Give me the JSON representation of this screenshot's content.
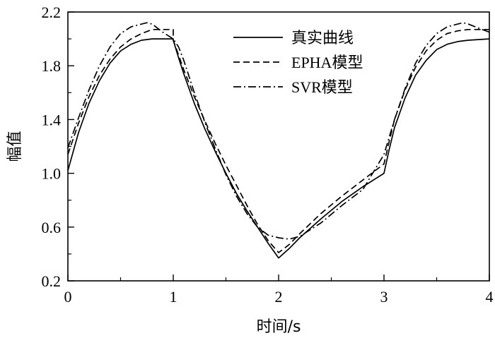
{
  "chart_data": {
    "type": "line",
    "xlabel": "时间/s",
    "ylabel": "幅值",
    "xlim": [
      0,
      4
    ],
    "ylim": [
      0.2,
      2.2
    ],
    "xticks": [
      "0",
      "1",
      "2",
      "3",
      "4"
    ],
    "yticks": [
      "0.2",
      "0.6",
      "1.0",
      "1.4",
      "1.8",
      "2.2"
    ],
    "grid": false,
    "legend_position": "top-right",
    "series": [
      {
        "name": "真实曲线",
        "style": "solid",
        "color": "#000000",
        "points": [
          [
            0,
            1.02
          ],
          [
            0.1,
            1.3
          ],
          [
            0.2,
            1.52
          ],
          [
            0.3,
            1.69
          ],
          [
            0.4,
            1.82
          ],
          [
            0.5,
            1.91
          ],
          [
            0.6,
            1.96
          ],
          [
            0.7,
            1.99
          ],
          [
            0.8,
            2.0
          ],
          [
            1.0,
            2.0
          ],
          [
            1.0,
            1.99
          ],
          [
            1.05,
            1.86
          ],
          [
            1.1,
            1.74
          ],
          [
            1.2,
            1.52
          ],
          [
            1.3,
            1.33
          ],
          [
            1.4,
            1.16
          ],
          [
            1.5,
            1.0
          ],
          [
            1.6,
            0.85
          ],
          [
            1.7,
            0.72
          ],
          [
            1.8,
            0.6
          ],
          [
            1.9,
            0.48
          ],
          [
            2.0,
            0.37
          ],
          [
            2.1,
            0.44
          ],
          [
            2.2,
            0.52
          ],
          [
            2.4,
            0.66
          ],
          [
            2.6,
            0.79
          ],
          [
            2.8,
            0.9
          ],
          [
            3.0,
            1.0
          ],
          [
            3.05,
            1.18
          ],
          [
            3.1,
            1.34
          ],
          [
            3.2,
            1.56
          ],
          [
            3.3,
            1.73
          ],
          [
            3.4,
            1.84
          ],
          [
            3.5,
            1.92
          ],
          [
            3.6,
            1.96
          ],
          [
            3.7,
            1.98
          ],
          [
            3.8,
            1.99
          ],
          [
            4.0,
            2.0
          ]
        ]
      },
      {
        "name": "EPHA模型",
        "style": "dashed",
        "color": "#000000",
        "points": [
          [
            0,
            1.14
          ],
          [
            0.1,
            1.37
          ],
          [
            0.2,
            1.57
          ],
          [
            0.3,
            1.73
          ],
          [
            0.4,
            1.85
          ],
          [
            0.5,
            1.94
          ],
          [
            0.6,
            2.0
          ],
          [
            0.7,
            2.04
          ],
          [
            0.8,
            2.07
          ],
          [
            1.0,
            2.07
          ],
          [
            1.0,
            1.99
          ],
          [
            1.05,
            1.88
          ],
          [
            1.1,
            1.77
          ],
          [
            1.2,
            1.57
          ],
          [
            1.3,
            1.39
          ],
          [
            1.4,
            1.22
          ],
          [
            1.5,
            1.06
          ],
          [
            1.6,
            0.91
          ],
          [
            1.7,
            0.76
          ],
          [
            1.8,
            0.62
          ],
          [
            1.9,
            0.5
          ],
          [
            2.0,
            0.41
          ],
          [
            2.1,
            0.47
          ],
          [
            2.2,
            0.55
          ],
          [
            2.4,
            0.7
          ],
          [
            2.6,
            0.83
          ],
          [
            2.8,
            0.95
          ],
          [
            3.0,
            1.07
          ],
          [
            3.05,
            1.24
          ],
          [
            3.1,
            1.4
          ],
          [
            3.2,
            1.62
          ],
          [
            3.3,
            1.79
          ],
          [
            3.4,
            1.91
          ],
          [
            3.5,
            1.99
          ],
          [
            3.6,
            2.04
          ],
          [
            3.7,
            2.06
          ],
          [
            3.8,
            2.07
          ],
          [
            4.0,
            2.07
          ]
        ]
      },
      {
        "name": "SVR模型",
        "style": "dashdot",
        "color": "#000000",
        "points": [
          [
            0,
            1.19
          ],
          [
            0.1,
            1.41
          ],
          [
            0.2,
            1.62
          ],
          [
            0.3,
            1.8
          ],
          [
            0.4,
            1.94
          ],
          [
            0.5,
            2.04
          ],
          [
            0.6,
            2.09
          ],
          [
            0.7,
            2.11
          ],
          [
            0.75,
            2.12
          ],
          [
            0.8,
            2.11
          ],
          [
            0.9,
            2.05
          ],
          [
            1.0,
            2.0
          ],
          [
            1.05,
            1.94
          ],
          [
            1.1,
            1.84
          ],
          [
            1.2,
            1.6
          ],
          [
            1.3,
            1.38
          ],
          [
            1.4,
            1.18
          ],
          [
            1.5,
            0.99
          ],
          [
            1.6,
            0.83
          ],
          [
            1.7,
            0.7
          ],
          [
            1.8,
            0.6
          ],
          [
            1.9,
            0.54
          ],
          [
            2.0,
            0.52
          ],
          [
            2.1,
            0.51
          ],
          [
            2.2,
            0.53
          ],
          [
            2.4,
            0.63
          ],
          [
            2.6,
            0.76
          ],
          [
            2.8,
            0.88
          ],
          [
            3.0,
            1.14
          ],
          [
            3.1,
            1.4
          ],
          [
            3.2,
            1.63
          ],
          [
            3.3,
            1.82
          ],
          [
            3.4,
            1.95
          ],
          [
            3.5,
            2.04
          ],
          [
            3.6,
            2.09
          ],
          [
            3.7,
            2.11
          ],
          [
            3.75,
            2.12
          ],
          [
            3.8,
            2.11
          ],
          [
            3.9,
            2.08
          ],
          [
            4.0,
            2.05
          ]
        ]
      }
    ]
  }
}
